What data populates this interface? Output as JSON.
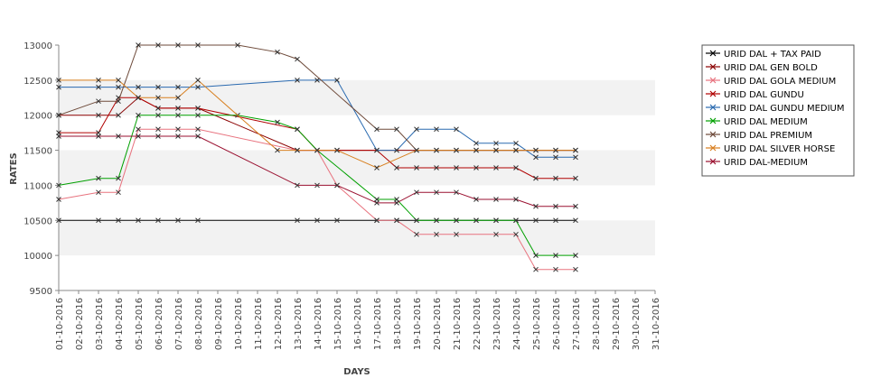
{
  "chart_data": {
    "type": "line",
    "title": "",
    "xlabel": "DAYS",
    "ylabel": "RATES",
    "ylim": [
      9500,
      13000
    ],
    "yticks": [
      9500,
      10000,
      10500,
      11000,
      11500,
      12000,
      12500,
      13000
    ],
    "categories": [
      "01-10-2016",
      "02-10-2016",
      "03-10-2016",
      "04-10-2016",
      "05-10-2016",
      "06-10-2016",
      "07-10-2016",
      "08-10-2016",
      "09-10-2016",
      "10-10-2016",
      "11-10-2016",
      "12-10-2016",
      "13-10-2016",
      "14-10-2016",
      "15-10-2016",
      "16-10-2016",
      "17-10-2016",
      "18-10-2016",
      "19-10-2016",
      "20-10-2016",
      "21-10-2016",
      "22-10-2016",
      "23-10-2016",
      "24-10-2016",
      "25-10-2016",
      "26-10-2016",
      "27-10-2016",
      "28-10-2016",
      "29-10-2016",
      "30-10-2016",
      "31-10-2016"
    ],
    "legend_position": "right",
    "grid": "alternating horizontal bands",
    "series": [
      {
        "name": "URID DAL + TAX PAID",
        "color": "#000000",
        "points": [
          [
            1,
            10500
          ],
          [
            3,
            10500
          ],
          [
            4,
            10500
          ],
          [
            5,
            10500
          ],
          [
            6,
            10500
          ],
          [
            7,
            10500
          ],
          [
            8,
            10500
          ],
          [
            13,
            10500
          ],
          [
            14,
            10500
          ],
          [
            15,
            10500
          ],
          [
            17,
            10500
          ],
          [
            18,
            10500
          ],
          [
            19,
            10500
          ],
          [
            20,
            10500
          ],
          [
            21,
            10500
          ],
          [
            22,
            10500
          ],
          [
            23,
            10500
          ],
          [
            24,
            10500
          ],
          [
            25,
            10500
          ],
          [
            26,
            10500
          ],
          [
            27,
            10500
          ]
        ]
      },
      {
        "name": "URID DAL GEN BOLD",
        "color": "#8b0000",
        "points": [
          [
            1,
            12000
          ],
          [
            3,
            12000
          ],
          [
            4,
            12000
          ],
          [
            5,
            12250
          ],
          [
            6,
            12100
          ],
          [
            7,
            12100
          ],
          [
            8,
            12100
          ],
          [
            13,
            11500
          ],
          [
            14,
            11500
          ],
          [
            15,
            11500
          ],
          [
            17,
            11500
          ],
          [
            18,
            11500
          ],
          [
            19,
            11500
          ],
          [
            20,
            11500
          ],
          [
            21,
            11500
          ],
          [
            22,
            11500
          ],
          [
            23,
            11500
          ],
          [
            24,
            11500
          ],
          [
            25,
            11500
          ],
          [
            26,
            11500
          ],
          [
            27,
            11500
          ]
        ]
      },
      {
        "name": "URID DAL GOLA MEDIUM",
        "color": "#e8737f",
        "points": [
          [
            1,
            10800
          ],
          [
            3,
            10900
          ],
          [
            4,
            10900
          ],
          [
            5,
            11800
          ],
          [
            6,
            11800
          ],
          [
            7,
            11800
          ],
          [
            8,
            11800
          ],
          [
            13,
            11500
          ],
          [
            14,
            11500
          ],
          [
            15,
            11000
          ],
          [
            17,
            10500
          ],
          [
            18,
            10500
          ],
          [
            19,
            10300
          ],
          [
            20,
            10300
          ],
          [
            21,
            10300
          ],
          [
            23,
            10300
          ],
          [
            24,
            10300
          ],
          [
            25,
            9800
          ],
          [
            26,
            9800
          ],
          [
            27,
            9800
          ]
        ]
      },
      {
        "name": "URID DAL GUNDU",
        "color": "#b00000",
        "points": [
          [
            1,
            11750
          ],
          [
            3,
            11750
          ],
          [
            4,
            12250
          ],
          [
            5,
            12250
          ],
          [
            6,
            12100
          ],
          [
            7,
            12100
          ],
          [
            8,
            12100
          ],
          [
            13,
            11800
          ],
          [
            14,
            11500
          ],
          [
            15,
            11500
          ],
          [
            17,
            11500
          ],
          [
            18,
            11250
          ],
          [
            19,
            11250
          ],
          [
            20,
            11250
          ],
          [
            21,
            11250
          ],
          [
            22,
            11250
          ],
          [
            23,
            11250
          ],
          [
            24,
            11250
          ],
          [
            25,
            11100
          ],
          [
            26,
            11100
          ],
          [
            27,
            11100
          ]
        ]
      },
      {
        "name": "URID DAL GUNDU MEDIUM",
        "color": "#2a6ab0",
        "points": [
          [
            1,
            12400
          ],
          [
            3,
            12400
          ],
          [
            4,
            12400
          ],
          [
            5,
            12400
          ],
          [
            6,
            12400
          ],
          [
            7,
            12400
          ],
          [
            8,
            12400
          ],
          [
            13,
            12500
          ],
          [
            14,
            12500
          ],
          [
            15,
            12500
          ],
          [
            17,
            11500
          ],
          [
            18,
            11500
          ],
          [
            19,
            11800
          ],
          [
            20,
            11800
          ],
          [
            21,
            11800
          ],
          [
            22,
            11600
          ],
          [
            23,
            11600
          ],
          [
            24,
            11600
          ],
          [
            25,
            11400
          ],
          [
            26,
            11400
          ],
          [
            27,
            11400
          ]
        ]
      },
      {
        "name": "URID DAL MEDIUM",
        "color": "#00a000",
        "points": [
          [
            1,
            11000
          ],
          [
            3,
            11100
          ],
          [
            4,
            11100
          ],
          [
            5,
            12000
          ],
          [
            6,
            12000
          ],
          [
            7,
            12000
          ],
          [
            8,
            12000
          ],
          [
            10,
            12000
          ],
          [
            12,
            11900
          ],
          [
            13,
            11800
          ],
          [
            14,
            11500
          ],
          [
            17,
            10800
          ],
          [
            18,
            10800
          ],
          [
            19,
            10500
          ],
          [
            20,
            10500
          ],
          [
            21,
            10500
          ],
          [
            22,
            10500
          ],
          [
            23,
            10500
          ],
          [
            24,
            10500
          ],
          [
            25,
            10000
          ],
          [
            26,
            10000
          ],
          [
            27,
            10000
          ]
        ]
      },
      {
        "name": "URID DAL PREMIUM",
        "color": "#6e4a3a",
        "points": [
          [
            1,
            12000
          ],
          [
            3,
            12200
          ],
          [
            4,
            12200
          ],
          [
            5,
            13000
          ],
          [
            6,
            13000
          ],
          [
            7,
            13000
          ],
          [
            8,
            13000
          ],
          [
            10,
            13000
          ],
          [
            12,
            12900
          ],
          [
            13,
            12800
          ],
          [
            17,
            11800
          ],
          [
            18,
            11800
          ],
          [
            19,
            11500
          ],
          [
            20,
            11500
          ],
          [
            21,
            11500
          ],
          [
            22,
            11500
          ],
          [
            23,
            11500
          ],
          [
            24,
            11500
          ],
          [
            25,
            11500
          ],
          [
            26,
            11500
          ],
          [
            27,
            11500
          ]
        ]
      },
      {
        "name": "URID DAL SILVER HORSE",
        "color": "#d87f1e",
        "points": [
          [
            1,
            12500
          ],
          [
            3,
            12500
          ],
          [
            4,
            12500
          ],
          [
            5,
            12250
          ],
          [
            6,
            12250
          ],
          [
            7,
            12250
          ],
          [
            8,
            12500
          ],
          [
            12,
            11500
          ],
          [
            13,
            11500
          ],
          [
            14,
            11500
          ],
          [
            15,
            11500
          ],
          [
            17,
            11250
          ],
          [
            19,
            11500
          ],
          [
            20,
            11500
          ],
          [
            21,
            11500
          ],
          [
            22,
            11500
          ],
          [
            23,
            11500
          ],
          [
            24,
            11500
          ],
          [
            25,
            11500
          ],
          [
            26,
            11500
          ],
          [
            27,
            11500
          ]
        ]
      },
      {
        "name": "URID DAL-MEDIUM",
        "color": "#9a1030",
        "points": [
          [
            1,
            11700
          ],
          [
            3,
            11700
          ],
          [
            4,
            11700
          ],
          [
            5,
            11700
          ],
          [
            6,
            11700
          ],
          [
            7,
            11700
          ],
          [
            8,
            11700
          ],
          [
            13,
            11000
          ],
          [
            14,
            11000
          ],
          [
            15,
            11000
          ],
          [
            17,
            10750
          ],
          [
            18,
            10750
          ],
          [
            19,
            10900
          ],
          [
            20,
            10900
          ],
          [
            21,
            10900
          ],
          [
            22,
            10800
          ],
          [
            23,
            10800
          ],
          [
            24,
            10800
          ],
          [
            25,
            10700
          ],
          [
            26,
            10700
          ],
          [
            27,
            10700
          ]
        ]
      }
    ]
  }
}
